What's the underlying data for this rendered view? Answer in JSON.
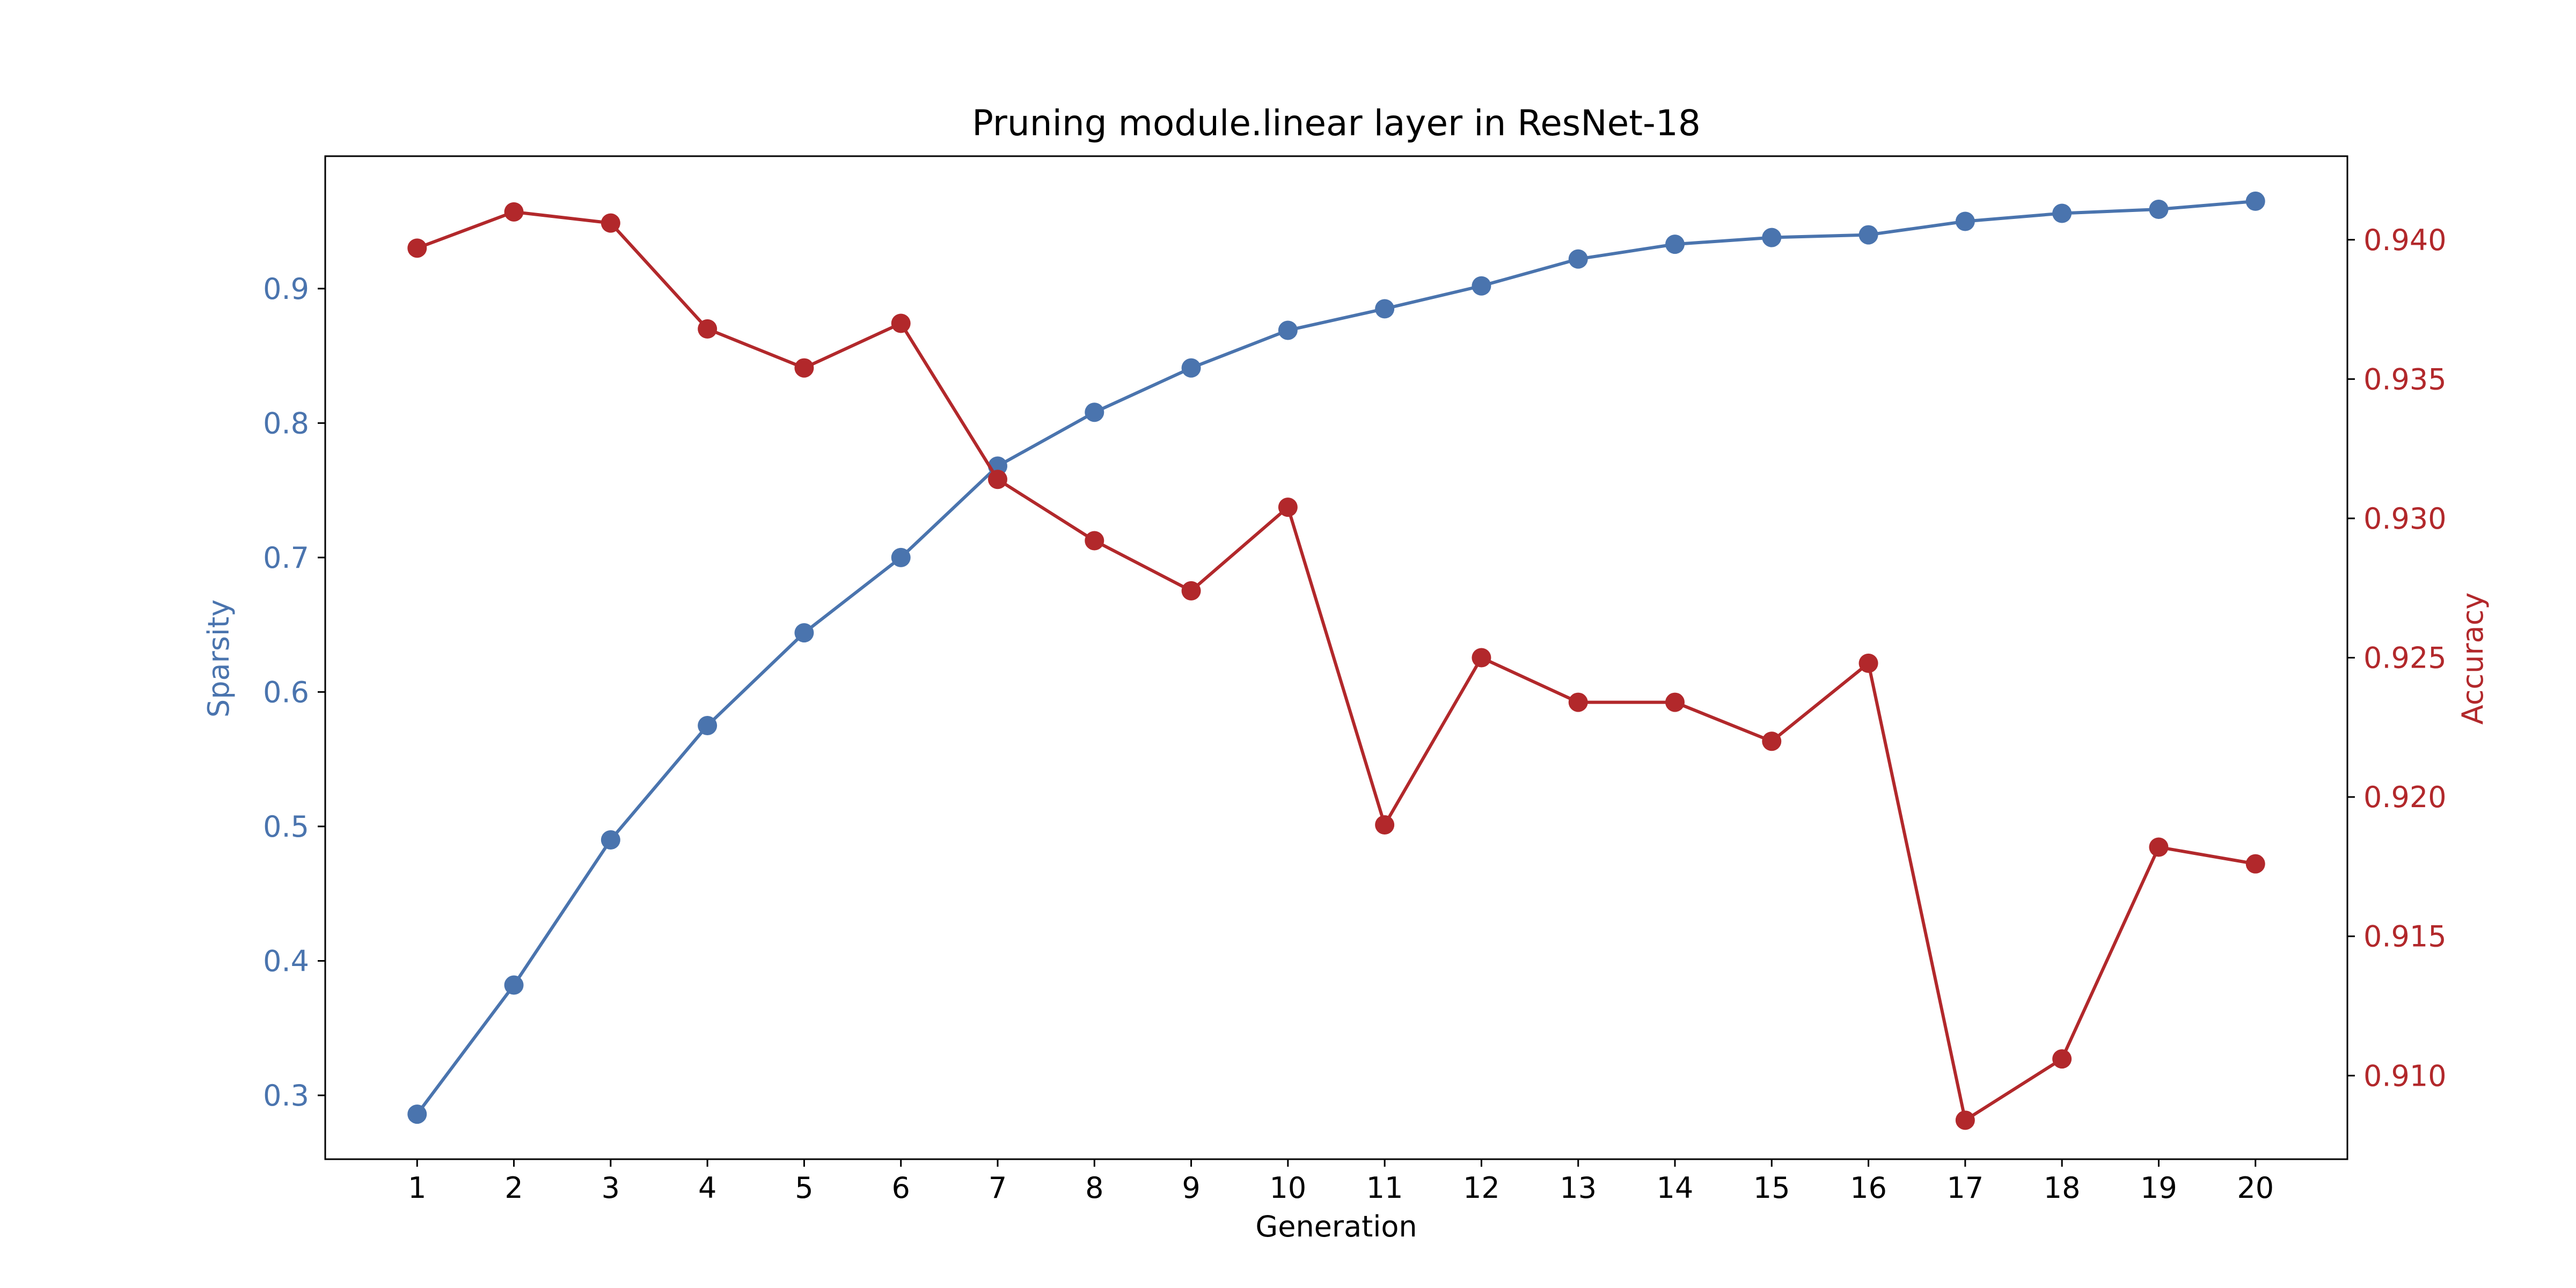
{
  "chart_data": {
    "type": "line",
    "title": "Pruning module.linear layer in ResNet-18",
    "xlabel": "Generation",
    "ylabel_left": "Sparsity",
    "ylabel_right": "Accuracy",
    "x": [
      1,
      2,
      3,
      4,
      5,
      6,
      7,
      8,
      9,
      10,
      11,
      12,
      13,
      14,
      15,
      16,
      17,
      18,
      19,
      20
    ],
    "x_tick_labels": [
      "1",
      "2",
      "3",
      "4",
      "5",
      "6",
      "7",
      "8",
      "9",
      "10",
      "11",
      "12",
      "13",
      "14",
      "15",
      "16",
      "17",
      "18",
      "19",
      "20"
    ],
    "xlim": [
      0.05,
      20.95
    ],
    "left_axis": {
      "ylim": [
        0.2525,
        0.9985
      ],
      "ticks": [
        0.3,
        0.4,
        0.5,
        0.6,
        0.7,
        0.8,
        0.9
      ],
      "tick_labels": [
        "0.3",
        "0.4",
        "0.5",
        "0.6",
        "0.7",
        "0.8",
        "0.9"
      ],
      "color": "#4A74AE"
    },
    "right_axis": {
      "ylim": [
        0.907,
        0.943
      ],
      "ticks": [
        0.91,
        0.915,
        0.92,
        0.925,
        0.93,
        0.935,
        0.94
      ],
      "tick_labels": [
        "0.910",
        "0.915",
        "0.920",
        "0.925",
        "0.930",
        "0.935",
        "0.940"
      ],
      "color": "#B2282B"
    },
    "grid": false,
    "series": [
      {
        "axis": "left",
        "color": "#4A74AE",
        "values": [
          0.286,
          0.382,
          0.49,
          0.575,
          0.644,
          0.7,
          0.768,
          0.808,
          0.841,
          0.869,
          0.885,
          0.902,
          0.922,
          0.933,
          0.938,
          0.94,
          0.95,
          0.956,
          0.959,
          0.965
        ]
      },
      {
        "axis": "right",
        "color": "#B2282B",
        "values": [
          0.9397,
          0.941,
          0.9406,
          0.9368,
          0.9354,
          0.937,
          0.9314,
          0.9292,
          0.9274,
          0.9304,
          0.919,
          0.925,
          0.9234,
          0.9234,
          0.922,
          0.9248,
          0.9084,
          0.9106,
          0.9182,
          0.9176
        ]
      }
    ]
  }
}
